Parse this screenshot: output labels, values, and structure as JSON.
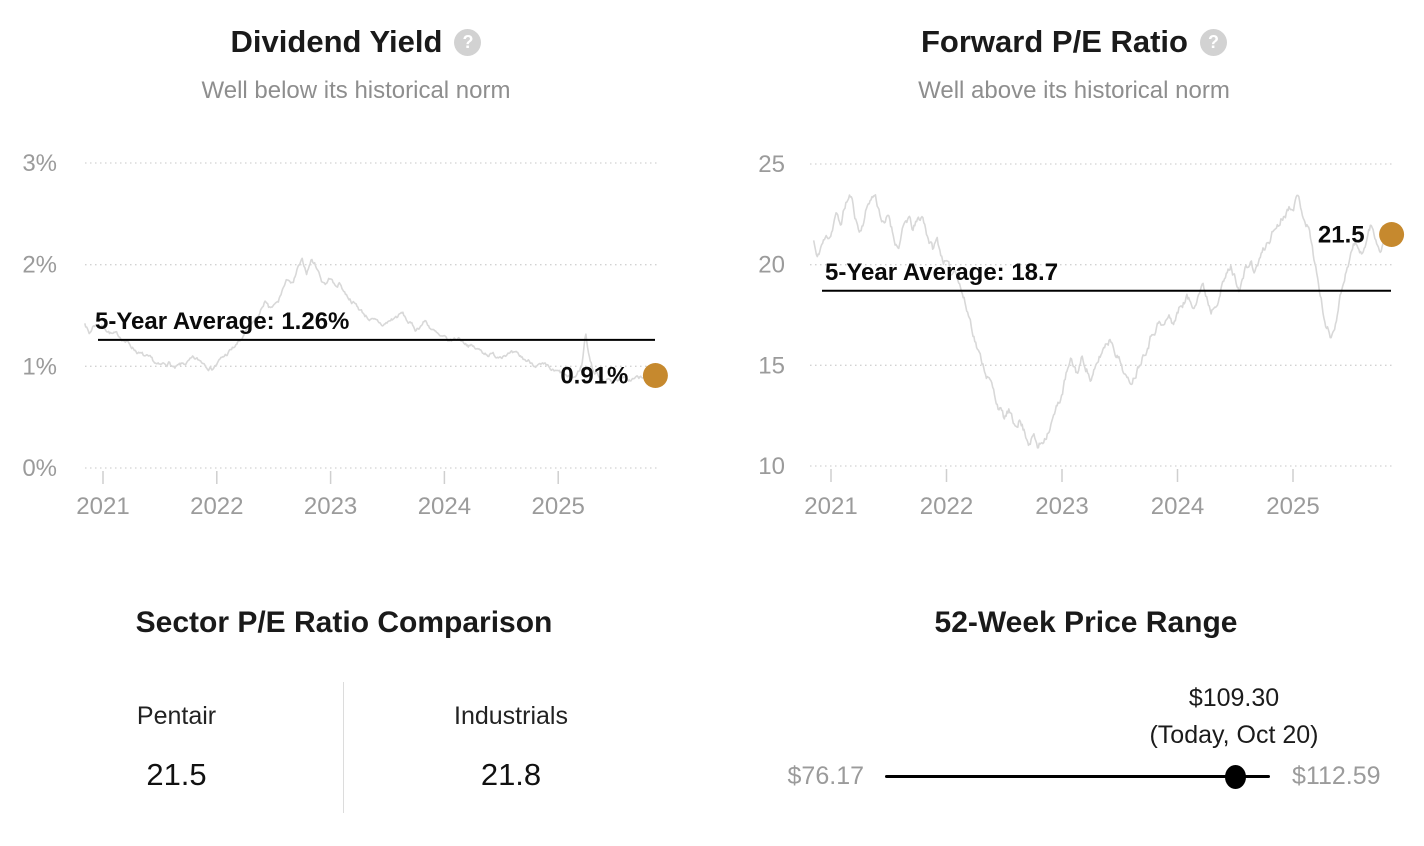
{
  "icons": {
    "help_glyph": "?"
  },
  "colors": {
    "accent_gold": "#c6892e",
    "series_line": "#d8d8d8",
    "grid": "#d2d2d2",
    "axis_text": "#9b9b9b",
    "annotation": "#0a0a0a",
    "average_line": "#000000"
  },
  "chart_data": [
    {
      "type": "line",
      "title": "Dividend Yield",
      "subtitle": "Well below its historical norm",
      "unit": "%",
      "grid": "horizontal-dotted",
      "ylim": [
        0,
        3
      ],
      "xlim": [
        2020.84,
        2025.81
      ],
      "y_ticks": [
        {
          "label": "3%",
          "value": 3
        },
        {
          "label": "2%",
          "value": 2
        },
        {
          "label": "1%",
          "value": 1
        },
        {
          "label": "0%",
          "value": 0
        }
      ],
      "x_ticks": [
        {
          "label": "2021",
          "value": 2021
        },
        {
          "label": "2022",
          "value": 2022
        },
        {
          "label": "2023",
          "value": 2023
        },
        {
          "label": "2024",
          "value": 2024
        },
        {
          "label": "2025",
          "value": 2025
        }
      ],
      "average": {
        "label": "5-Year Average: 1.26%",
        "value": 1.26
      },
      "current": {
        "label": "0.91%",
        "value": 0.91
      },
      "series": [
        {
          "name": "Dividend Yield",
          "points": [
            [
              2020.84,
              1.44
            ],
            [
              2020.88,
              1.32
            ],
            [
              2020.92,
              1.41
            ],
            [
              2021.0,
              1.4
            ],
            [
              2021.08,
              1.32
            ],
            [
              2021.17,
              1.28
            ],
            [
              2021.25,
              1.2
            ],
            [
              2021.33,
              1.12
            ],
            [
              2021.42,
              1.05
            ],
            [
              2021.5,
              0.99
            ],
            [
              2021.58,
              1.04
            ],
            [
              2021.63,
              0.97
            ],
            [
              2021.7,
              1.01
            ],
            [
              2021.79,
              1.06
            ],
            [
              2021.88,
              1.04
            ],
            [
              2021.96,
              0.99
            ],
            [
              2022.04,
              1.07
            ],
            [
              2022.13,
              1.16
            ],
            [
              2022.21,
              1.25
            ],
            [
              2022.29,
              1.38
            ],
            [
              2022.38,
              1.52
            ],
            [
              2022.42,
              1.64
            ],
            [
              2022.46,
              1.55
            ],
            [
              2022.54,
              1.62
            ],
            [
              2022.58,
              1.76
            ],
            [
              2022.63,
              1.86
            ],
            [
              2022.67,
              1.8
            ],
            [
              2022.71,
              1.95
            ],
            [
              2022.75,
              2.02
            ],
            [
              2022.79,
              1.92
            ],
            [
              2022.83,
              2.05
            ],
            [
              2022.88,
              1.98
            ],
            [
              2022.92,
              1.85
            ],
            [
              2022.96,
              1.82
            ],
            [
              2023.0,
              1.88
            ],
            [
              2023.04,
              1.78
            ],
            [
              2023.08,
              1.82
            ],
            [
              2023.13,
              1.72
            ],
            [
              2023.21,
              1.62
            ],
            [
              2023.29,
              1.52
            ],
            [
              2023.38,
              1.44
            ],
            [
              2023.46,
              1.4
            ],
            [
              2023.54,
              1.46
            ],
            [
              2023.63,
              1.52
            ],
            [
              2023.67,
              1.45
            ],
            [
              2023.75,
              1.36
            ],
            [
              2023.83,
              1.45
            ],
            [
              2023.88,
              1.38
            ],
            [
              2023.96,
              1.28
            ],
            [
              2024.04,
              1.24
            ],
            [
              2024.13,
              1.28
            ],
            [
              2024.21,
              1.22
            ],
            [
              2024.29,
              1.16
            ],
            [
              2024.38,
              1.13
            ],
            [
              2024.46,
              1.1
            ],
            [
              2024.54,
              1.14
            ],
            [
              2024.63,
              1.1
            ],
            [
              2024.71,
              1.06
            ],
            [
              2024.79,
              1.03
            ],
            [
              2024.88,
              0.99
            ],
            [
              2024.96,
              0.94
            ],
            [
              2025.04,
              0.92
            ],
            [
              2025.1,
              0.87
            ],
            [
              2025.16,
              0.9
            ],
            [
              2025.21,
              1.02
            ],
            [
              2025.24,
              1.33
            ],
            [
              2025.27,
              1.12
            ],
            [
              2025.31,
              0.95
            ],
            [
              2025.38,
              0.89
            ],
            [
              2025.46,
              0.86
            ],
            [
              2025.54,
              0.89
            ],
            [
              2025.62,
              0.86
            ],
            [
              2025.7,
              0.89
            ],
            [
              2025.76,
              0.87
            ],
            [
              2025.81,
              0.91
            ]
          ]
        }
      ]
    },
    {
      "type": "line",
      "title": "Forward P/E Ratio",
      "subtitle": "Well above its historical norm",
      "unit": "",
      "grid": "horizontal-dotted",
      "ylim": [
        10,
        25
      ],
      "xlim": [
        2020.85,
        2025.81
      ],
      "y_ticks": [
        {
          "label": "25",
          "value": 25
        },
        {
          "label": "20",
          "value": 20
        },
        {
          "label": "15",
          "value": 15
        },
        {
          "label": "10",
          "value": 10
        }
      ],
      "x_ticks": [
        {
          "label": "2021",
          "value": 2021
        },
        {
          "label": "2022",
          "value": 2022
        },
        {
          "label": "2023",
          "value": 2023
        },
        {
          "label": "2024",
          "value": 2024
        },
        {
          "label": "2025",
          "value": 2025
        }
      ],
      "average": {
        "label": "5-Year Average: 18.7",
        "value": 18.7
      },
      "current": {
        "label": "21.5",
        "value": 21.5
      },
      "series": [
        {
          "name": "Forward P/E",
          "points": [
            [
              2020.85,
              21.2
            ],
            [
              2020.88,
              20.2
            ],
            [
              2020.92,
              21.0
            ],
            [
              2021.0,
              21.6
            ],
            [
              2021.04,
              22.6
            ],
            [
              2021.08,
              21.9
            ],
            [
              2021.13,
              23.1
            ],
            [
              2021.17,
              23.4
            ],
            [
              2021.21,
              22.4
            ],
            [
              2021.25,
              21.6
            ],
            [
              2021.29,
              22.4
            ],
            [
              2021.33,
              23.2
            ],
            [
              2021.38,
              23.5
            ],
            [
              2021.42,
              22.7
            ],
            [
              2021.46,
              21.9
            ],
            [
              2021.5,
              22.4
            ],
            [
              2021.54,
              21.5
            ],
            [
              2021.58,
              20.9
            ],
            [
              2021.63,
              21.8
            ],
            [
              2021.67,
              22.3
            ],
            [
              2021.71,
              21.7
            ],
            [
              2021.75,
              22.1
            ],
            [
              2021.79,
              22.4
            ],
            [
              2021.83,
              21.6
            ],
            [
              2021.88,
              20.8
            ],
            [
              2021.92,
              21.2
            ],
            [
              2021.96,
              20.4
            ],
            [
              2022.0,
              20.1
            ],
            [
              2022.04,
              19.4
            ],
            [
              2022.08,
              19.9
            ],
            [
              2022.13,
              18.8
            ],
            [
              2022.17,
              17.9
            ],
            [
              2022.21,
              17.2
            ],
            [
              2022.25,
              16.3
            ],
            [
              2022.29,
              15.4
            ],
            [
              2022.33,
              14.9
            ],
            [
              2022.38,
              14.2
            ],
            [
              2022.42,
              13.4
            ],
            [
              2022.46,
              12.9
            ],
            [
              2022.5,
              12.3
            ],
            [
              2022.54,
              12.7
            ],
            [
              2022.58,
              11.9
            ],
            [
              2022.63,
              12.4
            ],
            [
              2022.67,
              11.8
            ],
            [
              2022.71,
              11.3
            ],
            [
              2022.75,
              11.6
            ],
            [
              2022.79,
              10.9
            ],
            [
              2022.83,
              11.2
            ],
            [
              2022.88,
              11.9
            ],
            [
              2022.92,
              12.4
            ],
            [
              2022.96,
              12.9
            ],
            [
              2023.0,
              13.6
            ],
            [
              2023.04,
              14.6
            ],
            [
              2023.08,
              15.1
            ],
            [
              2023.13,
              14.6
            ],
            [
              2023.17,
              15.3
            ],
            [
              2023.21,
              15.0
            ],
            [
              2023.25,
              14.3
            ],
            [
              2023.29,
              14.7
            ],
            [
              2023.33,
              15.4
            ],
            [
              2023.38,
              16.1
            ],
            [
              2023.42,
              16.4
            ],
            [
              2023.46,
              15.9
            ],
            [
              2023.5,
              15.3
            ],
            [
              2023.54,
              14.7
            ],
            [
              2023.58,
              14.0
            ],
            [
              2023.63,
              14.6
            ],
            [
              2023.67,
              15.2
            ],
            [
              2023.71,
              15.8
            ],
            [
              2023.75,
              16.3
            ],
            [
              2023.79,
              16.8
            ],
            [
              2023.83,
              17.2
            ],
            [
              2023.88,
              16.9
            ],
            [
              2023.92,
              17.4
            ],
            [
              2023.96,
              17.1
            ],
            [
              2024.0,
              17.6
            ],
            [
              2024.04,
              18.1
            ],
            [
              2024.08,
              18.4
            ],
            [
              2024.13,
              17.9
            ],
            [
              2024.17,
              18.6
            ],
            [
              2024.21,
              19.1
            ],
            [
              2024.25,
              18.5
            ],
            [
              2024.29,
              17.8
            ],
            [
              2024.33,
              18.3
            ],
            [
              2024.38,
              19.0
            ],
            [
              2024.42,
              19.4
            ],
            [
              2024.46,
              19.9
            ],
            [
              2024.5,
              19.3
            ],
            [
              2024.54,
              18.9
            ],
            [
              2024.58,
              19.6
            ],
            [
              2024.63,
              20.1
            ],
            [
              2024.67,
              19.6
            ],
            [
              2024.71,
              20.3
            ],
            [
              2024.75,
              20.7
            ],
            [
              2024.79,
              21.2
            ],
            [
              2024.83,
              21.7
            ],
            [
              2024.88,
              22.1
            ],
            [
              2024.92,
              22.6
            ],
            [
              2024.96,
              22.9
            ],
            [
              2025.0,
              23.2
            ],
            [
              2025.04,
              23.4
            ],
            [
              2025.08,
              22.7
            ],
            [
              2025.13,
              22.0
            ],
            [
              2025.17,
              20.8
            ],
            [
              2025.21,
              19.4
            ],
            [
              2025.25,
              18.0
            ],
            [
              2025.29,
              16.9
            ],
            [
              2025.33,
              16.4
            ],
            [
              2025.38,
              17.6
            ],
            [
              2025.42,
              18.8
            ],
            [
              2025.46,
              19.8
            ],
            [
              2025.5,
              20.6
            ],
            [
              2025.54,
              21.1
            ],
            [
              2025.58,
              20.4
            ],
            [
              2025.63,
              21.0
            ],
            [
              2025.67,
              21.9
            ],
            [
              2025.71,
              21.4
            ],
            [
              2025.75,
              20.9
            ],
            [
              2025.79,
              21.2
            ],
            [
              2025.81,
              21.5
            ]
          ]
        }
      ]
    }
  ],
  "comparison": {
    "title": "Sector P/E Ratio Comparison",
    "left": {
      "label": "Pentair",
      "value": "21.5"
    },
    "right": {
      "label": "Industrials",
      "value": "21.8"
    }
  },
  "price_range": {
    "title": "52-Week Price Range",
    "current": "$109.30",
    "current_sub": "(Today, Oct 20)",
    "low": "$76.17",
    "high": "$112.59",
    "low_value": 76.17,
    "high_value": 112.59,
    "current_value": 109.3
  }
}
